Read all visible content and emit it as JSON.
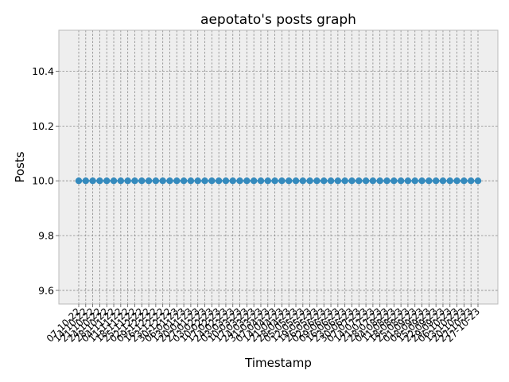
{
  "chart_data": {
    "type": "line",
    "title": "aepotato's posts graph",
    "xlabel": "Timestamp",
    "ylabel": "Posts",
    "ylim": [
      9.55,
      10.55
    ],
    "yticks": [
      "9.6",
      "9.8",
      "10.0",
      "10.2",
      "10.4"
    ],
    "grid": true,
    "legend": "none",
    "colors": {
      "line": "#348ABD",
      "plot_bg": "#EEEEEE",
      "grid": "#888888",
      "spine": "#BBBBBB"
    },
    "categories": [
      "07-10-22",
      "14-10-22",
      "21-10-22",
      "24-10-22",
      "28-10-22",
      "04-11-22",
      "11-11-22",
      "18-11-22",
      "25-11-22",
      "02-12-22",
      "09-12-22",
      "16-12-22",
      "23-12-22",
      "30-12-22",
      "06-01-23",
      "13-01-23",
      "20-01-23",
      "27-01-23",
      "03-02-23",
      "10-02-23",
      "17-02-23",
      "24-02-23",
      "03-03-23",
      "10-03-23",
      "17-03-23",
      "24-03-23",
      "31-03-23",
      "07-04-23",
      "14-04-23",
      "21-04-23",
      "28-04-23",
      "05-05-23",
      "12-05-23",
      "19-05-23",
      "26-05-23",
      "02-06-23",
      "09-06-23",
      "16-06-23",
      "23-06-23",
      "30-06-23",
      "07-07-23",
      "14-07-23",
      "21-07-23",
      "28-07-23",
      "04-08-23",
      "11-08-23",
      "18-08-23",
      "25-08-23",
      "01-09-23",
      "08-09-23",
      "15-09-23",
      "22-09-23",
      "29-09-23",
      "06-10-23",
      "13-10-23",
      "20-10-23",
      "27-10-23",
      "27-10-23"
    ],
    "series": [
      {
        "values": [
          10,
          10,
          10,
          10,
          10,
          10,
          10,
          10,
          10,
          10,
          10,
          10,
          10,
          10,
          10,
          10,
          10,
          10,
          10,
          10,
          10,
          10,
          10,
          10,
          10,
          10,
          10,
          10,
          10,
          10,
          10,
          10,
          10,
          10,
          10,
          10,
          10,
          10,
          10,
          10,
          10,
          10,
          10,
          10,
          10,
          10,
          10,
          10,
          10,
          10,
          10,
          10,
          10,
          10,
          10,
          10,
          10,
          10
        ]
      }
    ]
  }
}
